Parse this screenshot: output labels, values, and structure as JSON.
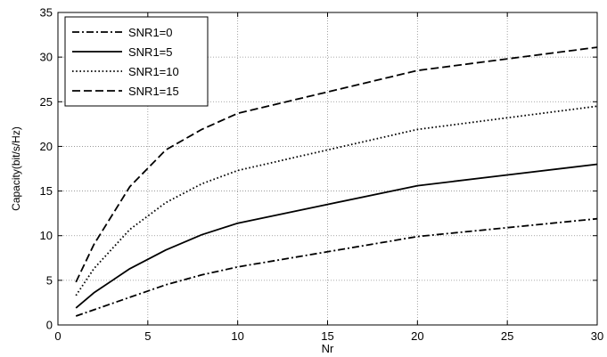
{
  "chart_data": {
    "type": "line",
    "title": "",
    "xlabel": "Nr",
    "ylabel": "Capacity(bit/s/Hz)",
    "xlim": [
      0,
      30
    ],
    "ylim": [
      0,
      35
    ],
    "xticks": [
      0,
      5,
      10,
      15,
      20,
      25,
      30
    ],
    "yticks": [
      0,
      5,
      10,
      15,
      20,
      25,
      30,
      35
    ],
    "grid": true,
    "legend_position": "top-left",
    "line_color": "#000000",
    "series": [
      {
        "name": "SNR1=0",
        "style": "dash-dot",
        "x": [
          1,
          2,
          4,
          6,
          8,
          10,
          15,
          20,
          25,
          30
        ],
        "y": [
          1.0,
          1.7,
          3.1,
          4.5,
          5.6,
          6.5,
          8.2,
          9.9,
          10.9,
          11.9
        ]
      },
      {
        "name": "SNR1=5",
        "style": "solid",
        "x": [
          1,
          2,
          4,
          6,
          8,
          10,
          15,
          20,
          25,
          30
        ],
        "y": [
          1.9,
          3.6,
          6.3,
          8.4,
          10.1,
          11.4,
          13.5,
          15.6,
          16.8,
          18.0
        ]
      },
      {
        "name": "SNR1=10",
        "style": "dotted",
        "x": [
          1,
          2,
          4,
          6,
          8,
          10,
          15,
          20,
          25,
          30
        ],
        "y": [
          3.3,
          6.3,
          10.7,
          13.7,
          15.8,
          17.3,
          19.6,
          21.9,
          23.2,
          24.5
        ]
      },
      {
        "name": "SNR1=15",
        "style": "dashed",
        "x": [
          1,
          2,
          4,
          6,
          8,
          10,
          15,
          20,
          25,
          30
        ],
        "y": [
          4.8,
          9.0,
          15.5,
          19.6,
          21.9,
          23.7,
          26.1,
          28.5,
          29.8,
          31.1
        ]
      }
    ]
  }
}
